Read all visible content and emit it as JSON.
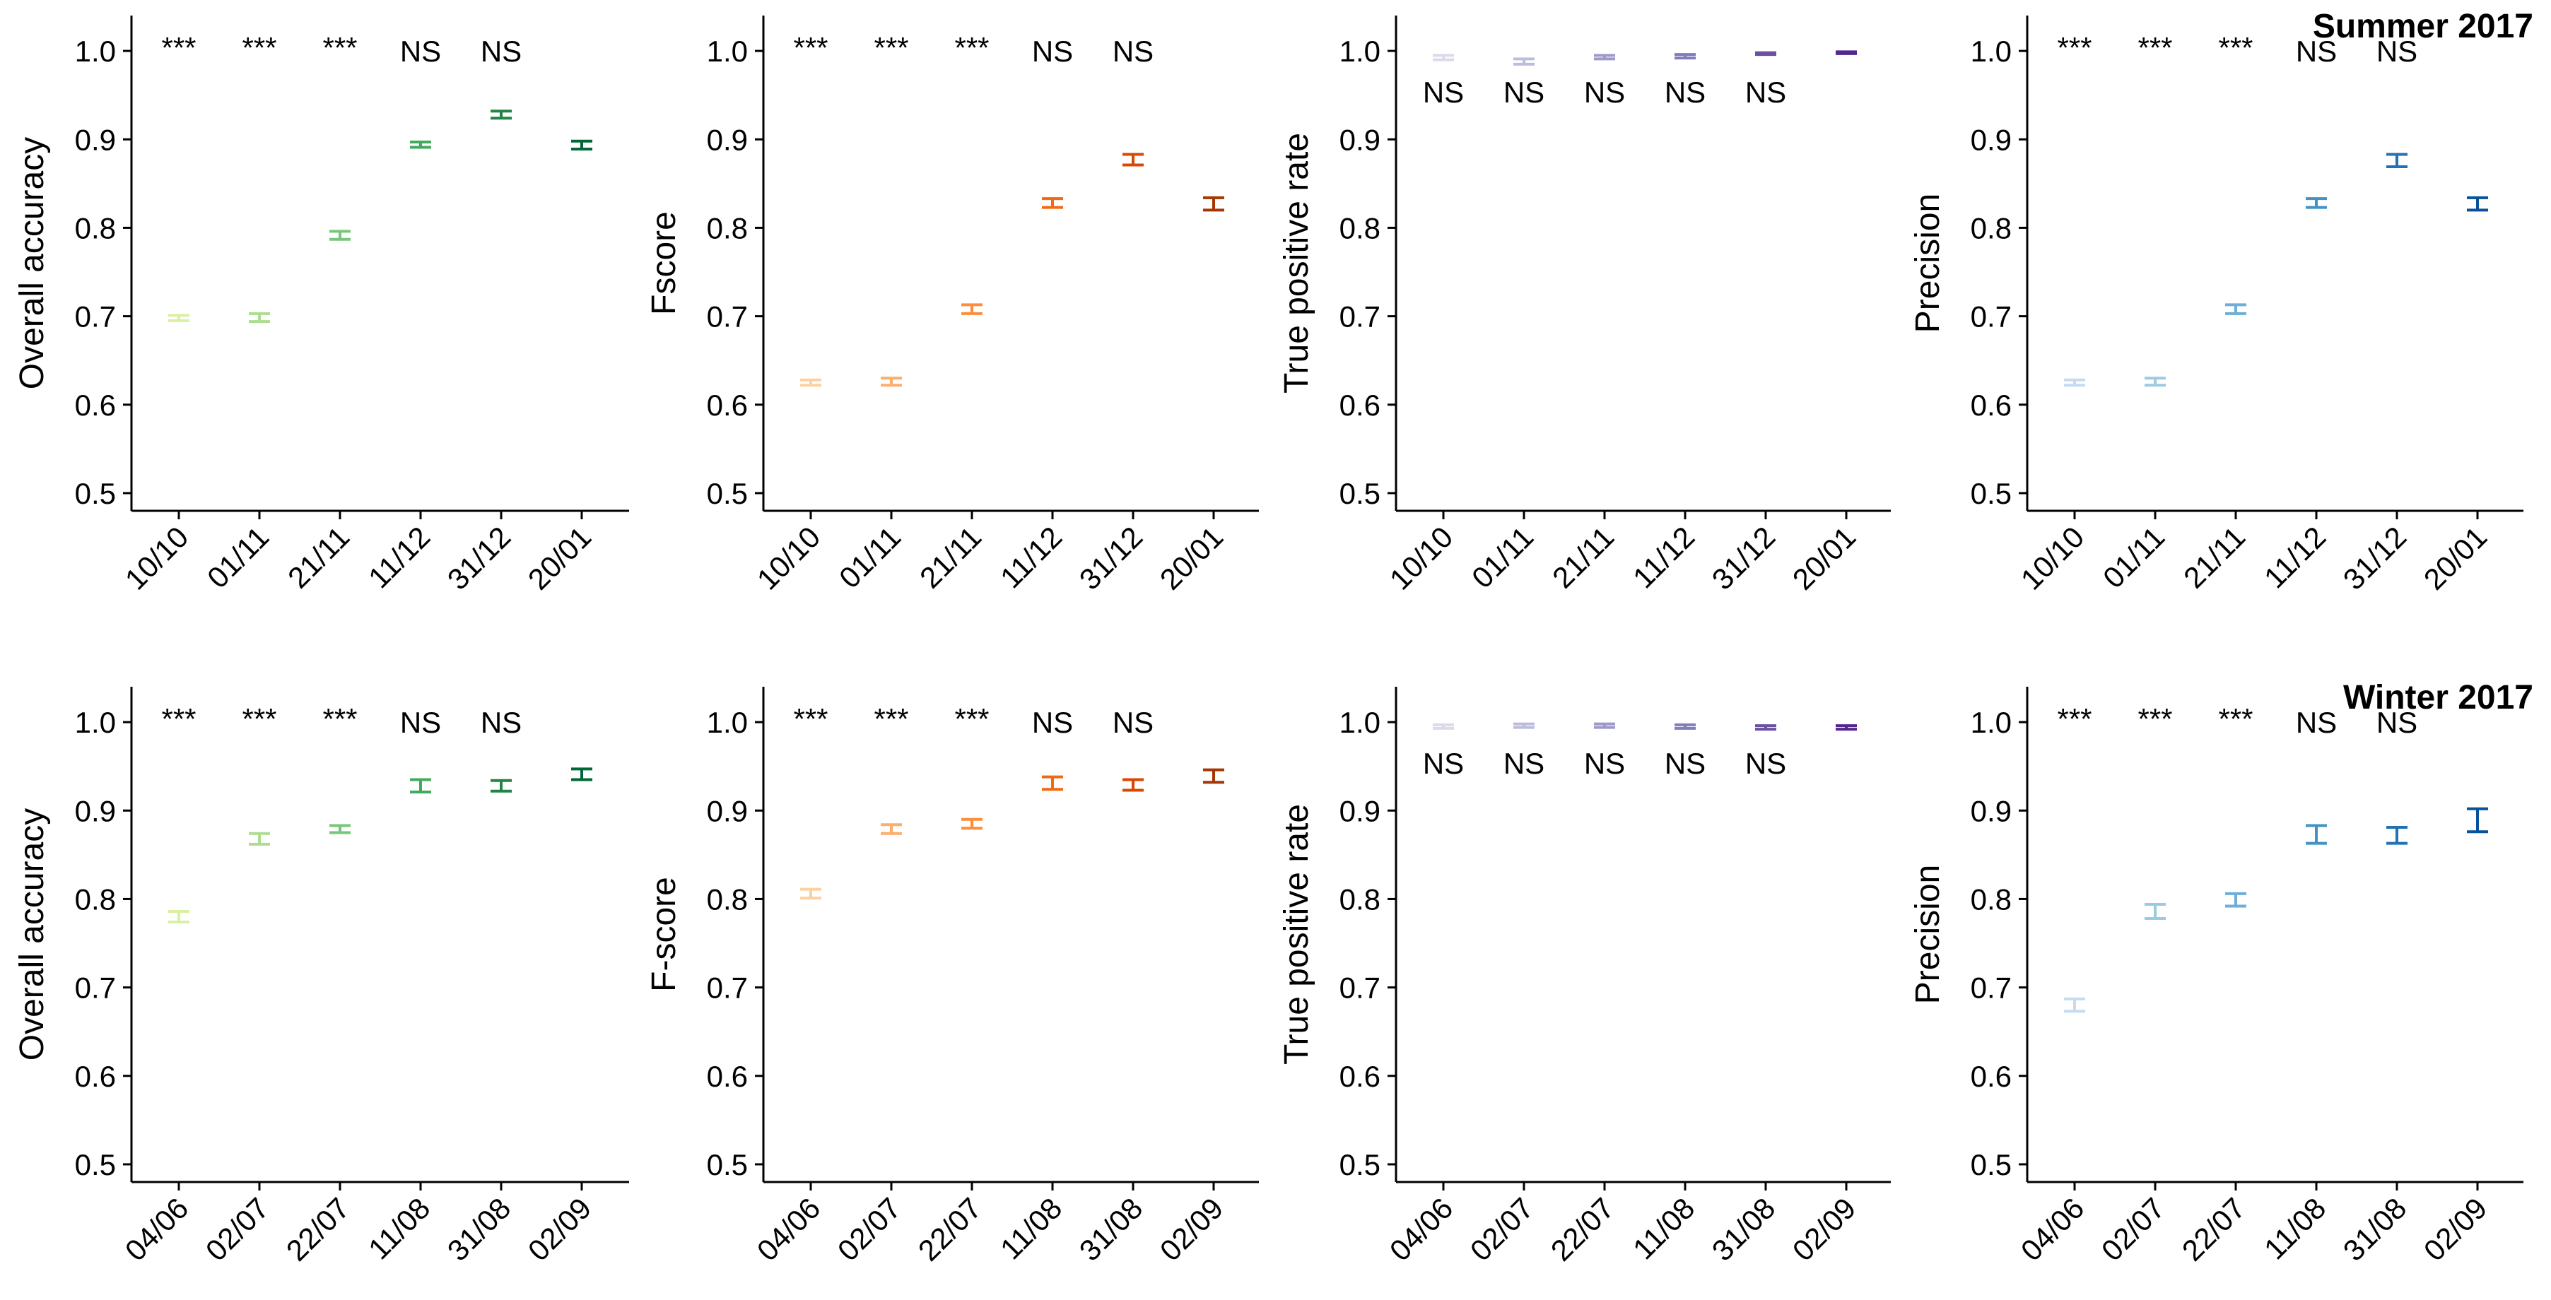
{
  "chart_data": [
    {
      "type": "errorbar",
      "season": "Summer 2017",
      "metric": "accuracy",
      "ylabel": "Overall accuracy",
      "categories": [
        "10/10",
        "01/11",
        "21/11",
        "11/12",
        "31/12",
        "20/01"
      ],
      "ylim": [
        0.48,
        1.04
      ],
      "yticks": [
        0.5,
        0.6,
        0.7,
        0.8,
        0.9,
        1.0
      ],
      "ytick_labels": [
        "0.5",
        "0.6",
        "0.7",
        "0.8",
        "0.9",
        "1.0"
      ],
      "values": [
        0.698,
        0.699,
        0.792,
        0.894,
        0.928,
        0.894
      ],
      "lower": [
        0.695,
        0.694,
        0.787,
        0.891,
        0.924,
        0.889
      ],
      "upper": [
        0.701,
        0.703,
        0.796,
        0.897,
        0.932,
        0.898
      ],
      "significance": [
        "***",
        "***",
        "***",
        "NS",
        "NS",
        null
      ],
      "colors": [
        "#d9f0a3",
        "#addd8e",
        "#78c679",
        "#41ab5d",
        "#238443",
        "#006837"
      ],
      "title": ""
    },
    {
      "type": "errorbar",
      "season": "Summer 2017",
      "metric": "fscore",
      "ylabel": "Fscore",
      "categories": [
        "10/10",
        "01/11",
        "21/11",
        "11/12",
        "31/12",
        "20/01"
      ],
      "ylim": [
        0.48,
        1.04
      ],
      "yticks": [
        0.5,
        0.6,
        0.7,
        0.8,
        0.9,
        1.0
      ],
      "ytick_labels": [
        "0.5",
        "0.6",
        "0.7",
        "0.8",
        "0.9",
        "1.0"
      ],
      "values": [
        0.625,
        0.626,
        0.708,
        0.828,
        0.877,
        0.827
      ],
      "lower": [
        0.622,
        0.622,
        0.703,
        0.823,
        0.871,
        0.82
      ],
      "upper": [
        0.628,
        0.63,
        0.713,
        0.833,
        0.883,
        0.834
      ],
      "significance": [
        "***",
        "***",
        "***",
        "NS",
        "NS",
        null
      ],
      "colors": [
        "#fdd0a2",
        "#fdae6b",
        "#fd8d3c",
        "#f16913",
        "#d94801",
        "#a63603"
      ],
      "title": ""
    },
    {
      "type": "errorbar",
      "season": "Summer 2017",
      "metric": "tpr",
      "ylabel": "True positive rate",
      "categories": [
        "10/10",
        "01/11",
        "21/11",
        "11/12",
        "31/12",
        "20/01"
      ],
      "ylim": [
        0.48,
        1.04
      ],
      "yticks": [
        0.5,
        0.6,
        0.7,
        0.8,
        0.9,
        1.0
      ],
      "ytick_labels": [
        "0.5",
        "0.6",
        "0.7",
        "0.8",
        "0.9",
        "1.0"
      ],
      "values": [
        0.992,
        0.988,
        0.993,
        0.994,
        0.997,
        0.998
      ],
      "lower": [
        0.99,
        0.985,
        0.991,
        0.992,
        0.996,
        0.997
      ],
      "upper": [
        0.995,
        0.991,
        0.995,
        0.996,
        0.998,
        0.999
      ],
      "significance": [
        "NS",
        "NS",
        "NS",
        "NS",
        "NS",
        null
      ],
      "colors": [
        "#dadaeb",
        "#bcbddc",
        "#9e9ac8",
        "#807dba",
        "#6a51a3",
        "#54278f"
      ],
      "title": ""
    },
    {
      "type": "errorbar",
      "season": "Summer 2017",
      "metric": "precision",
      "ylabel": "Precision",
      "categories": [
        "10/10",
        "01/11",
        "21/11",
        "11/12",
        "31/12",
        "20/01"
      ],
      "ylim": [
        0.48,
        1.04
      ],
      "yticks": [
        0.5,
        0.6,
        0.7,
        0.8,
        0.9,
        1.0
      ],
      "ytick_labels": [
        "0.5",
        "0.6",
        "0.7",
        "0.8",
        "0.9",
        "1.0"
      ],
      "values": [
        0.625,
        0.626,
        0.708,
        0.828,
        0.876,
        0.827
      ],
      "lower": [
        0.622,
        0.622,
        0.703,
        0.823,
        0.869,
        0.82
      ],
      "upper": [
        0.628,
        0.63,
        0.713,
        0.833,
        0.883,
        0.834
      ],
      "significance": [
        "***",
        "***",
        "***",
        "NS",
        "NS",
        null
      ],
      "colors": [
        "#c6dbef",
        "#9ecae1",
        "#6baed6",
        "#4292c6",
        "#2171b5",
        "#08519c"
      ],
      "title": "Summer 2017"
    },
    {
      "type": "errorbar",
      "season": "Winter 2017",
      "metric": "accuracy",
      "ylabel": "Overall accuracy",
      "categories": [
        "04/06",
        "02/07",
        "22/07",
        "11/08",
        "31/08",
        "02/09"
      ],
      "ylim": [
        0.48,
        1.04
      ],
      "yticks": [
        0.5,
        0.6,
        0.7,
        0.8,
        0.9,
        1.0
      ],
      "ytick_labels": [
        "0.5",
        "0.6",
        "0.7",
        "0.8",
        "0.9",
        "1.0"
      ],
      "values": [
        0.78,
        0.868,
        0.879,
        0.928,
        0.928,
        0.941
      ],
      "lower": [
        0.774,
        0.862,
        0.875,
        0.921,
        0.922,
        0.935
      ],
      "upper": [
        0.786,
        0.874,
        0.883,
        0.935,
        0.934,
        0.947
      ],
      "significance": [
        "***",
        "***",
        "***",
        "NS",
        "NS",
        null
      ],
      "colors": [
        "#d9f0a3",
        "#addd8e",
        "#78c679",
        "#41ab5d",
        "#238443",
        "#006837"
      ],
      "title": ""
    },
    {
      "type": "errorbar",
      "season": "Winter 2017",
      "metric": "fscore",
      "ylabel": "F-score",
      "categories": [
        "04/06",
        "02/07",
        "22/07",
        "11/08",
        "31/08",
        "02/09"
      ],
      "ylim": [
        0.48,
        1.04
      ],
      "yticks": [
        0.5,
        0.6,
        0.7,
        0.8,
        0.9,
        1.0
      ],
      "ytick_labels": [
        "0.5",
        "0.6",
        "0.7",
        "0.8",
        "0.9",
        "1.0"
      ],
      "values": [
        0.806,
        0.879,
        0.885,
        0.931,
        0.929,
        0.939
      ],
      "lower": [
        0.801,
        0.874,
        0.88,
        0.924,
        0.923,
        0.932
      ],
      "upper": [
        0.811,
        0.884,
        0.89,
        0.938,
        0.935,
        0.946
      ],
      "significance": [
        "***",
        "***",
        "***",
        "NS",
        "NS",
        null
      ],
      "colors": [
        "#fdd0a2",
        "#fdae6b",
        "#fd8d3c",
        "#f16913",
        "#d94801",
        "#a63603"
      ],
      "title": ""
    },
    {
      "type": "errorbar",
      "season": "Winter 2017",
      "metric": "tpr",
      "ylabel": "True positive rate",
      "categories": [
        "04/06",
        "02/07",
        "22/07",
        "11/08",
        "31/08",
        "02/09"
      ],
      "ylim": [
        0.48,
        1.04
      ],
      "yticks": [
        0.5,
        0.6,
        0.7,
        0.8,
        0.9,
        1.0
      ],
      "ytick_labels": [
        "0.5",
        "0.6",
        "0.7",
        "0.8",
        "0.9",
        "1.0"
      ],
      "values": [
        0.995,
        0.996,
        0.996,
        0.995,
        0.994,
        0.994
      ],
      "lower": [
        0.993,
        0.994,
        0.994,
        0.993,
        0.992,
        0.992
      ],
      "upper": [
        0.997,
        0.998,
        0.998,
        0.997,
        0.996,
        0.996
      ],
      "significance": [
        "NS",
        "NS",
        "NS",
        "NS",
        "NS",
        null
      ],
      "colors": [
        "#dadaeb",
        "#bcbddc",
        "#9e9ac8",
        "#807dba",
        "#6a51a3",
        "#54278f"
      ],
      "title": ""
    },
    {
      "type": "errorbar",
      "season": "Winter 2017",
      "metric": "precision",
      "ylabel": "Precision",
      "categories": [
        "04/06",
        "02/07",
        "22/07",
        "11/08",
        "31/08",
        "02/09"
      ],
      "ylim": [
        0.48,
        1.04
      ],
      "yticks": [
        0.5,
        0.6,
        0.7,
        0.8,
        0.9,
        1.0
      ],
      "ytick_labels": [
        "0.5",
        "0.6",
        "0.7",
        "0.8",
        "0.9",
        "1.0"
      ],
      "values": [
        0.68,
        0.786,
        0.799,
        0.873,
        0.872,
        0.889
      ],
      "lower": [
        0.673,
        0.778,
        0.792,
        0.863,
        0.863,
        0.876
      ],
      "upper": [
        0.687,
        0.794,
        0.806,
        0.883,
        0.881,
        0.902
      ],
      "significance": [
        "***",
        "***",
        "***",
        "NS",
        "NS",
        null
      ],
      "colors": [
        "#c6dbef",
        "#9ecae1",
        "#6baed6",
        "#4292c6",
        "#2171b5",
        "#08519c"
      ],
      "title": "Winter 2017"
    }
  ]
}
